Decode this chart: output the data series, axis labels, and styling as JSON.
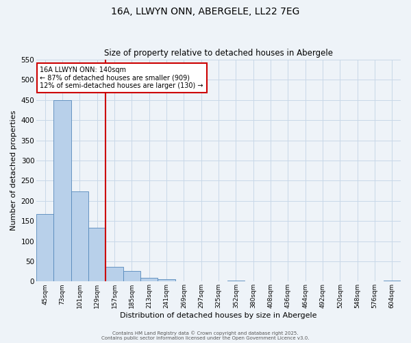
{
  "title": "16A, LLWYN ONN, ABERGELE, LL22 7EG",
  "subtitle": "Size of property relative to detached houses in Abergele",
  "xlabel": "Distribution of detached houses by size in Abergele",
  "ylabel": "Number of detached properties",
  "categories": [
    "45sqm",
    "73sqm",
    "101sqm",
    "129sqm",
    "157sqm",
    "185sqm",
    "213sqm",
    "241sqm",
    "269sqm",
    "297sqm",
    "325sqm",
    "352sqm",
    "380sqm",
    "408sqm",
    "436sqm",
    "464sqm",
    "492sqm",
    "520sqm",
    "548sqm",
    "576sqm",
    "604sqm"
  ],
  "values": [
    167,
    450,
    224,
    133,
    37,
    26,
    9,
    5,
    0,
    0,
    0,
    2,
    0,
    0,
    0,
    0,
    0,
    0,
    0,
    0,
    3
  ],
  "bar_color": "#b8d0ea",
  "bar_edge_color": "#5588bb",
  "grid_color": "#c8d8e8",
  "background_color": "#eef3f8",
  "vline_color": "#cc0000",
  "annotation_title": "16A LLWYN ONN: 140sqm",
  "annotation_line1": "← 87% of detached houses are smaller (909)",
  "annotation_line2": "12% of semi-detached houses are larger (130) →",
  "annotation_box_color": "#cc0000",
  "ylim": [
    0,
    550
  ],
  "yticks": [
    0,
    50,
    100,
    150,
    200,
    250,
    300,
    350,
    400,
    450,
    500,
    550
  ],
  "footer1": "Contains HM Land Registry data © Crown copyright and database right 2025.",
  "footer2": "Contains public sector information licensed under the Open Government Licence v3.0."
}
